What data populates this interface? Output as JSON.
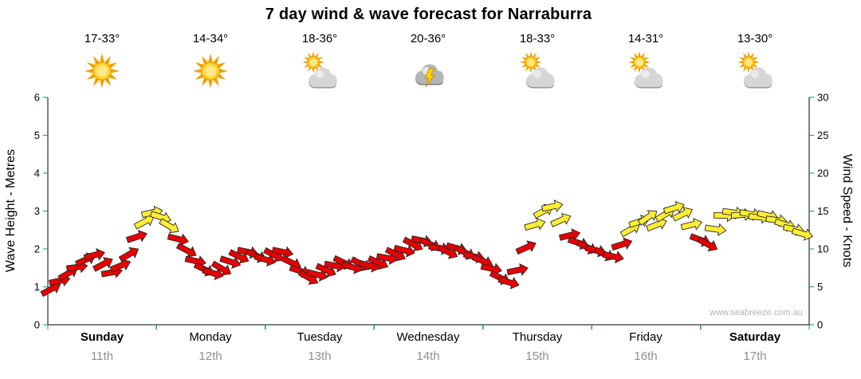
{
  "title": "7 day wind & wave forecast for Narraburra",
  "watermark": "www.seabreeze.com.au",
  "days": [
    {
      "name": "Sunday",
      "date": "11th",
      "temp": "17-33°",
      "icon": "sunny",
      "weekend": true
    },
    {
      "name": "Monday",
      "date": "12th",
      "temp": "14-34°",
      "icon": "sunny",
      "weekend": false
    },
    {
      "name": "Tuesday",
      "date": "13th",
      "temp": "18-36°",
      "icon": "partly-cloudy",
      "weekend": false
    },
    {
      "name": "Wednesday",
      "date": "14th",
      "temp": "20-36°",
      "icon": "storm",
      "weekend": false
    },
    {
      "name": "Thursday",
      "date": "15th",
      "temp": "18-33°",
      "icon": "partly-cloudy",
      "weekend": false
    },
    {
      "name": "Friday",
      "date": "16th",
      "temp": "14-31°",
      "icon": "partly-cloudy",
      "weekend": false
    },
    {
      "name": "Saturday",
      "date": "17th",
      "temp": "13-30°",
      "icon": "partly-cloudy",
      "weekend": true
    }
  ],
  "chart_data": {
    "type": "scatter",
    "title": "7 day wind & wave forecast for Narraburra",
    "left_axis": {
      "label": "Wave Height - Metres",
      "min": 0,
      "max": 6,
      "ticks": [
        0,
        1,
        2,
        3,
        4,
        5,
        6
      ]
    },
    "right_axis": {
      "label": "Wind Speed - Knots",
      "min": 0,
      "max": 30,
      "ticks": [
        0,
        5,
        10,
        15,
        20,
        25,
        30
      ]
    },
    "x_axis": {
      "days": 7,
      "labels": [
        "Sunday 11th",
        "Monday 12th",
        "Tuesday 13th",
        "Wednesday 14th",
        "Thursday 15th",
        "Friday 16th",
        "Saturday 17th"
      ]
    },
    "grid": false,
    "colors": {
      "red": "#e60000",
      "yellow": "#ffee33",
      "tick": "#009999",
      "axis": "#000000"
    },
    "wind_points_columns": [
      "day_fraction",
      "knots",
      "direction_deg",
      "color"
    ],
    "wind_points": [
      [
        0.03,
        4.7,
        -28,
        "red"
      ],
      [
        0.11,
        5.8,
        -12,
        "red"
      ],
      [
        0.19,
        6.8,
        -30,
        "red"
      ],
      [
        0.27,
        7.6,
        -8,
        "red"
      ],
      [
        0.35,
        8.6,
        -24,
        "red"
      ],
      [
        0.43,
        9.2,
        -14,
        "red"
      ],
      [
        0.51,
        8.0,
        -28,
        "red"
      ],
      [
        0.59,
        6.9,
        -10,
        "red"
      ],
      [
        0.67,
        7.8,
        -22,
        "red"
      ],
      [
        0.75,
        9.3,
        -30,
        "red"
      ],
      [
        0.82,
        11.6,
        -18,
        "red"
      ],
      [
        0.89,
        13.6,
        -28,
        "yellow"
      ],
      [
        0.96,
        14.8,
        -12,
        "yellow"
      ],
      [
        1.04,
        14.2,
        18,
        "yellow"
      ],
      [
        1.12,
        13.0,
        30,
        "yellow"
      ],
      [
        1.2,
        11.3,
        14,
        "red"
      ],
      [
        1.28,
        9.8,
        28,
        "red"
      ],
      [
        1.36,
        8.4,
        12,
        "red"
      ],
      [
        1.44,
        7.3,
        26,
        "red"
      ],
      [
        1.52,
        6.8,
        16,
        "red"
      ],
      [
        1.6,
        7.4,
        30,
        "red"
      ],
      [
        1.68,
        8.3,
        18,
        "red"
      ],
      [
        1.76,
        9.0,
        26,
        "red"
      ],
      [
        1.84,
        9.6,
        12,
        "red"
      ],
      [
        1.92,
        9.1,
        24,
        "red"
      ],
      [
        2.0,
        8.6,
        16,
        "red"
      ],
      [
        2.08,
        9.2,
        28,
        "red"
      ],
      [
        2.16,
        9.6,
        12,
        "red"
      ],
      [
        2.24,
        8.2,
        26,
        "red"
      ],
      [
        2.32,
        7.1,
        18,
        "red"
      ],
      [
        2.4,
        6.2,
        30,
        "red"
      ],
      [
        2.48,
        6.6,
        14,
        "red"
      ],
      [
        2.56,
        7.2,
        24,
        "red"
      ],
      [
        2.64,
        7.8,
        10,
        "red"
      ],
      [
        2.72,
        8.2,
        26,
        "red"
      ],
      [
        2.8,
        7.6,
        16,
        "red"
      ],
      [
        2.88,
        8.0,
        28,
        "red"
      ],
      [
        2.96,
        7.8,
        14,
        "red"
      ],
      [
        3.04,
        8.2,
        24,
        "red"
      ],
      [
        3.12,
        8.8,
        10,
        "red"
      ],
      [
        3.2,
        9.3,
        26,
        "red"
      ],
      [
        3.28,
        9.8,
        14,
        "red"
      ],
      [
        3.36,
        10.6,
        28,
        "red"
      ],
      [
        3.44,
        11.1,
        12,
        "red"
      ],
      [
        3.52,
        10.6,
        24,
        "red"
      ],
      [
        3.6,
        10.1,
        10,
        "red"
      ],
      [
        3.68,
        9.6,
        26,
        "red"
      ],
      [
        3.76,
        10.1,
        16,
        "red"
      ],
      [
        3.84,
        9.5,
        28,
        "red"
      ],
      [
        3.92,
        9.0,
        12,
        "red"
      ],
      [
        4.0,
        8.4,
        22,
        "red"
      ],
      [
        4.08,
        7.4,
        12,
        "red"
      ],
      [
        4.16,
        6.2,
        26,
        "red"
      ],
      [
        4.24,
        5.6,
        16,
        "red"
      ],
      [
        4.32,
        7.2,
        -12,
        "red"
      ],
      [
        4.4,
        10.2,
        -24,
        "red"
      ],
      [
        4.48,
        13.2,
        -16,
        "yellow"
      ],
      [
        4.56,
        15.0,
        -28,
        "yellow"
      ],
      [
        4.64,
        15.6,
        -12,
        "yellow"
      ],
      [
        4.72,
        13.8,
        -24,
        "yellow"
      ],
      [
        4.8,
        11.8,
        -14,
        "red"
      ],
      [
        4.88,
        10.8,
        18,
        "red"
      ],
      [
        4.96,
        10.2,
        26,
        "red"
      ],
      [
        5.04,
        9.8,
        14,
        "red"
      ],
      [
        5.12,
        9.3,
        26,
        "red"
      ],
      [
        5.2,
        9.0,
        12,
        "red"
      ],
      [
        5.28,
        10.6,
        -18,
        "red"
      ],
      [
        5.36,
        12.6,
        -30,
        "yellow"
      ],
      [
        5.44,
        13.6,
        -18,
        "yellow"
      ],
      [
        5.52,
        14.2,
        -34,
        "yellow"
      ],
      [
        5.6,
        13.2,
        -22,
        "yellow"
      ],
      [
        5.68,
        14.6,
        -32,
        "yellow"
      ],
      [
        5.76,
        15.4,
        -18,
        "yellow"
      ],
      [
        5.84,
        14.6,
        -26,
        "yellow"
      ],
      [
        5.92,
        13.2,
        -14,
        "yellow"
      ],
      [
        6.0,
        11.2,
        20,
        "red"
      ],
      [
        6.07,
        10.6,
        28,
        "red"
      ],
      [
        6.14,
        12.6,
        8,
        "yellow"
      ],
      [
        6.22,
        14.4,
        2,
        "yellow"
      ],
      [
        6.3,
        14.8,
        8,
        "yellow"
      ],
      [
        6.38,
        14.5,
        -4,
        "yellow"
      ],
      [
        6.46,
        14.6,
        10,
        "yellow"
      ],
      [
        6.54,
        14.2,
        4,
        "yellow"
      ],
      [
        6.62,
        14.4,
        14,
        "yellow"
      ],
      [
        6.7,
        13.8,
        8,
        "yellow"
      ],
      [
        6.78,
        13.2,
        18,
        "yellow"
      ],
      [
        6.86,
        12.6,
        12,
        "yellow"
      ],
      [
        6.94,
        12.0,
        16,
        "yellow"
      ]
    ]
  }
}
